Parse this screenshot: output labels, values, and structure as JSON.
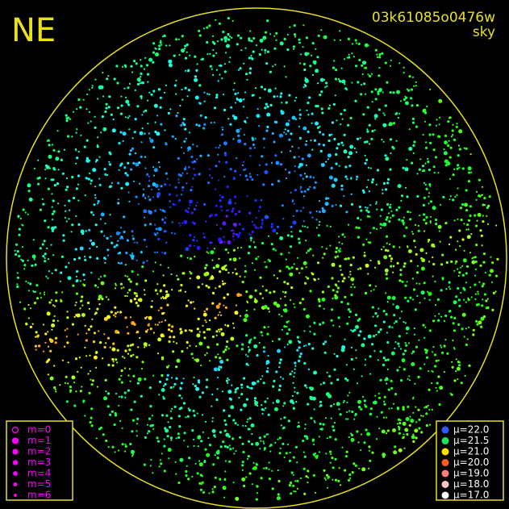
{
  "header": {
    "title": "NE",
    "id": "03k61085o0476w",
    "subtitle": "sky"
  },
  "magnitude_legend": {
    "color": "#ff00ff",
    "items": [
      "m=0",
      "m=1",
      "m=2",
      "m=3",
      "m=4",
      "m=5",
      "m=6"
    ]
  },
  "sky_legend": {
    "items": [
      {
        "label": "μ=22.0",
        "color": "#2a5cff"
      },
      {
        "label": "μ=21.5",
        "color": "#22e25a"
      },
      {
        "label": "μ=21.0",
        "color": "#ffe000"
      },
      {
        "label": "μ=20.0",
        "color": "#ff5a2a"
      },
      {
        "label": "μ=19.0",
        "color": "#ff7f7f"
      },
      {
        "label": "μ=18.0",
        "color": "#ffc4c4"
      },
      {
        "label": "μ=17.0",
        "color": "#ffffff"
      }
    ]
  }
}
